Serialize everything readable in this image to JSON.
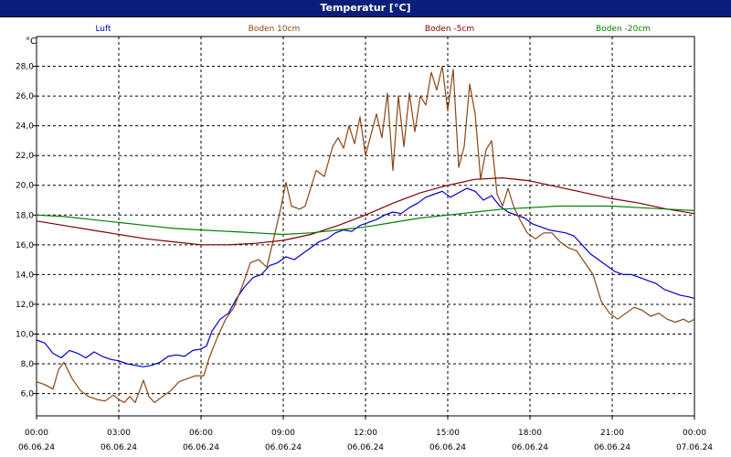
{
  "window": {
    "title": "Temperatur [°C]"
  },
  "chart_data": {
    "type": "line",
    "title": "Temperatur [°C]",
    "ylabel": "°C",
    "xlabel": "",
    "ylim": [
      4.5,
      30.0
    ],
    "xlim": [
      0,
      24
    ],
    "grid": true,
    "legend_placement": "top",
    "y_ticks": [
      "6,0",
      "8,0",
      "10,0",
      "12,0",
      "14,0",
      "16,0",
      "18,0",
      "20,0",
      "22,0",
      "24,0",
      "26,0",
      "28,0"
    ],
    "x_ticks": [
      {
        "time": "00:00",
        "date": "06.06.24"
      },
      {
        "time": "03:00",
        "date": "06.06.24"
      },
      {
        "time": "06:00",
        "date": "06.06.24"
      },
      {
        "time": "09:00",
        "date": "06.06.24"
      },
      {
        "time": "12:00",
        "date": "06.06.24"
      },
      {
        "time": "15:00",
        "date": "06.06.24"
      },
      {
        "time": "18:00",
        "date": "06.06.24"
      },
      {
        "time": "21:00",
        "date": "06.06.24"
      },
      {
        "time": "00:00",
        "date": "07.06.24"
      }
    ],
    "series": [
      {
        "name": "Luft",
        "color": "#0000cc",
        "points": [
          [
            0,
            9.6
          ],
          [
            0.3,
            9.4
          ],
          [
            0.6,
            8.7
          ],
          [
            0.9,
            8.4
          ],
          [
            1.2,
            8.9
          ],
          [
            1.5,
            8.7
          ],
          [
            1.8,
            8.4
          ],
          [
            2.1,
            8.8
          ],
          [
            2.4,
            8.5
          ],
          [
            2.7,
            8.3
          ],
          [
            3.0,
            8.2
          ],
          [
            3.3,
            8.0
          ],
          [
            3.6,
            7.9
          ],
          [
            3.9,
            7.8
          ],
          [
            4.2,
            7.9
          ],
          [
            4.5,
            8.1
          ],
          [
            4.8,
            8.5
          ],
          [
            5.1,
            8.6
          ],
          [
            5.4,
            8.5
          ],
          [
            5.7,
            8.9
          ],
          [
            6.0,
            9.0
          ],
          [
            6.2,
            9.2
          ],
          [
            6.4,
            10.2
          ],
          [
            6.7,
            11.0
          ],
          [
            7.0,
            11.4
          ],
          [
            7.3,
            12.4
          ],
          [
            7.6,
            13.2
          ],
          [
            7.9,
            13.8
          ],
          [
            8.2,
            14.0
          ],
          [
            8.5,
            14.6
          ],
          [
            8.8,
            14.8
          ],
          [
            9.1,
            15.2
          ],
          [
            9.4,
            15.0
          ],
          [
            9.7,
            15.4
          ],
          [
            10.0,
            15.8
          ],
          [
            10.3,
            16.2
          ],
          [
            10.6,
            16.4
          ],
          [
            10.9,
            16.8
          ],
          [
            11.2,
            17.0
          ],
          [
            11.5,
            16.9
          ],
          [
            11.8,
            17.3
          ],
          [
            12.1,
            17.5
          ],
          [
            12.4,
            17.7
          ],
          [
            12.7,
            18.0
          ],
          [
            13.0,
            18.2
          ],
          [
            13.3,
            18.1
          ],
          [
            13.6,
            18.5
          ],
          [
            13.9,
            18.8
          ],
          [
            14.2,
            19.2
          ],
          [
            14.5,
            19.4
          ],
          [
            14.8,
            19.6
          ],
          [
            15.1,
            19.2
          ],
          [
            15.4,
            19.5
          ],
          [
            15.7,
            19.8
          ],
          [
            16.0,
            19.6
          ],
          [
            16.3,
            19.0
          ],
          [
            16.6,
            19.3
          ],
          [
            16.9,
            18.6
          ],
          [
            17.2,
            18.2
          ],
          [
            17.5,
            18.0
          ],
          [
            17.8,
            17.8
          ],
          [
            18.1,
            17.4
          ],
          [
            18.4,
            17.2
          ],
          [
            18.7,
            17.0
          ],
          [
            19.0,
            16.9
          ],
          [
            19.3,
            16.8
          ],
          [
            19.6,
            16.6
          ],
          [
            19.9,
            16.0
          ],
          [
            20.2,
            15.4
          ],
          [
            20.5,
            15.0
          ],
          [
            20.8,
            14.6
          ],
          [
            21.1,
            14.2
          ],
          [
            21.4,
            14.0
          ],
          [
            21.7,
            14.0
          ],
          [
            22.0,
            13.8
          ],
          [
            22.3,
            13.6
          ],
          [
            22.6,
            13.4
          ],
          [
            22.9,
            13.0
          ],
          [
            23.2,
            12.8
          ],
          [
            23.5,
            12.6
          ],
          [
            23.8,
            12.5
          ],
          [
            24.0,
            12.4
          ]
        ]
      },
      {
        "name": "Boden 10cm",
        "color": "#8b4513",
        "points": [
          [
            0,
            6.8
          ],
          [
            0.3,
            6.6
          ],
          [
            0.6,
            6.3
          ],
          [
            0.8,
            7.6
          ],
          [
            1.0,
            8.1
          ],
          [
            1.3,
            7.0
          ],
          [
            1.6,
            6.2
          ],
          [
            1.9,
            5.8
          ],
          [
            2.2,
            5.6
          ],
          [
            2.5,
            5.5
          ],
          [
            2.8,
            5.9
          ],
          [
            3.0,
            5.6
          ],
          [
            3.2,
            5.4
          ],
          [
            3.4,
            5.8
          ],
          [
            3.6,
            5.4
          ],
          [
            3.9,
            6.9
          ],
          [
            4.1,
            5.8
          ],
          [
            4.3,
            5.4
          ],
          [
            4.6,
            5.8
          ],
          [
            4.9,
            6.2
          ],
          [
            5.2,
            6.8
          ],
          [
            5.5,
            7.0
          ],
          [
            5.8,
            7.2
          ],
          [
            6.1,
            7.2
          ],
          [
            6.3,
            8.4
          ],
          [
            6.6,
            9.8
          ],
          [
            6.9,
            11.0
          ],
          [
            7.2,
            11.8
          ],
          [
            7.5,
            13.2
          ],
          [
            7.8,
            14.8
          ],
          [
            8.1,
            15.0
          ],
          [
            8.4,
            14.5
          ],
          [
            8.7,
            16.8
          ],
          [
            8.9,
            18.4
          ],
          [
            9.1,
            20.2
          ],
          [
            9.3,
            18.6
          ],
          [
            9.6,
            18.4
          ],
          [
            9.8,
            18.6
          ],
          [
            10.0,
            19.8
          ],
          [
            10.2,
            21.0
          ],
          [
            10.5,
            20.6
          ],
          [
            10.8,
            22.6
          ],
          [
            11.0,
            23.2
          ],
          [
            11.2,
            22.5
          ],
          [
            11.4,
            24.0
          ],
          [
            11.6,
            22.8
          ],
          [
            11.8,
            24.6
          ],
          [
            12.0,
            22.0
          ],
          [
            12.2,
            23.4
          ],
          [
            12.4,
            24.8
          ],
          [
            12.6,
            23.2
          ],
          [
            12.8,
            26.2
          ],
          [
            13.0,
            21.0
          ],
          [
            13.2,
            26.0
          ],
          [
            13.4,
            22.6
          ],
          [
            13.6,
            26.2
          ],
          [
            13.8,
            23.6
          ],
          [
            14.0,
            26.0
          ],
          [
            14.2,
            25.4
          ],
          [
            14.4,
            27.6
          ],
          [
            14.6,
            26.4
          ],
          [
            14.8,
            28.0
          ],
          [
            15.0,
            25.0
          ],
          [
            15.2,
            27.8
          ],
          [
            15.4,
            21.2
          ],
          [
            15.6,
            22.6
          ],
          [
            15.8,
            26.8
          ],
          [
            16.0,
            24.8
          ],
          [
            16.2,
            20.4
          ],
          [
            16.4,
            22.4
          ],
          [
            16.6,
            23.0
          ],
          [
            16.8,
            19.4
          ],
          [
            17.0,
            18.6
          ],
          [
            17.2,
            19.8
          ],
          [
            17.4,
            18.6
          ],
          [
            17.6,
            17.8
          ],
          [
            17.9,
            16.8
          ],
          [
            18.2,
            16.4
          ],
          [
            18.5,
            16.8
          ],
          [
            18.8,
            16.8
          ],
          [
            19.1,
            16.2
          ],
          [
            19.4,
            15.8
          ],
          [
            19.7,
            15.6
          ],
          [
            20.0,
            14.8
          ],
          [
            20.3,
            14.0
          ],
          [
            20.6,
            12.2
          ],
          [
            20.9,
            11.4
          ],
          [
            21.2,
            11.0
          ],
          [
            21.5,
            11.4
          ],
          [
            21.8,
            11.8
          ],
          [
            22.1,
            11.6
          ],
          [
            22.4,
            11.2
          ],
          [
            22.7,
            11.4
          ],
          [
            23.0,
            11.0
          ],
          [
            23.3,
            10.8
          ],
          [
            23.6,
            11.0
          ],
          [
            23.8,
            10.8
          ],
          [
            24.0,
            11.0
          ]
        ]
      },
      {
        "name": "Boden -5cm",
        "color": "#800000",
        "points": [
          [
            0,
            17.6
          ],
          [
            1,
            17.3
          ],
          [
            2,
            17.0
          ],
          [
            3,
            16.7
          ],
          [
            4,
            16.4
          ],
          [
            5,
            16.2
          ],
          [
            6,
            16.0
          ],
          [
            7,
            16.0
          ],
          [
            8,
            16.1
          ],
          [
            9,
            16.3
          ],
          [
            10,
            16.7
          ],
          [
            11,
            17.3
          ],
          [
            12,
            18.0
          ],
          [
            13,
            18.8
          ],
          [
            14,
            19.5
          ],
          [
            15,
            20.0
          ],
          [
            16,
            20.4
          ],
          [
            17,
            20.5
          ],
          [
            18,
            20.3
          ],
          [
            19,
            19.9
          ],
          [
            20,
            19.5
          ],
          [
            21,
            19.1
          ],
          [
            22,
            18.8
          ],
          [
            23,
            18.4
          ],
          [
            24,
            18.1
          ]
        ]
      },
      {
        "name": "Boden -20cm",
        "color": "#008000",
        "points": [
          [
            0,
            18.0
          ],
          [
            1,
            17.9
          ],
          [
            2,
            17.7
          ],
          [
            3,
            17.5
          ],
          [
            4,
            17.3
          ],
          [
            5,
            17.1
          ],
          [
            6,
            17.0
          ],
          [
            7,
            16.9
          ],
          [
            8,
            16.8
          ],
          [
            9,
            16.7
          ],
          [
            10,
            16.8
          ],
          [
            11,
            17.0
          ],
          [
            12,
            17.2
          ],
          [
            13,
            17.5
          ],
          [
            14,
            17.8
          ],
          [
            15,
            18.0
          ],
          [
            16,
            18.2
          ],
          [
            17,
            18.4
          ],
          [
            18,
            18.5
          ],
          [
            19,
            18.6
          ],
          [
            20,
            18.6
          ],
          [
            21,
            18.6
          ],
          [
            22,
            18.5
          ],
          [
            23,
            18.4
          ],
          [
            24,
            18.3
          ]
        ]
      }
    ]
  }
}
